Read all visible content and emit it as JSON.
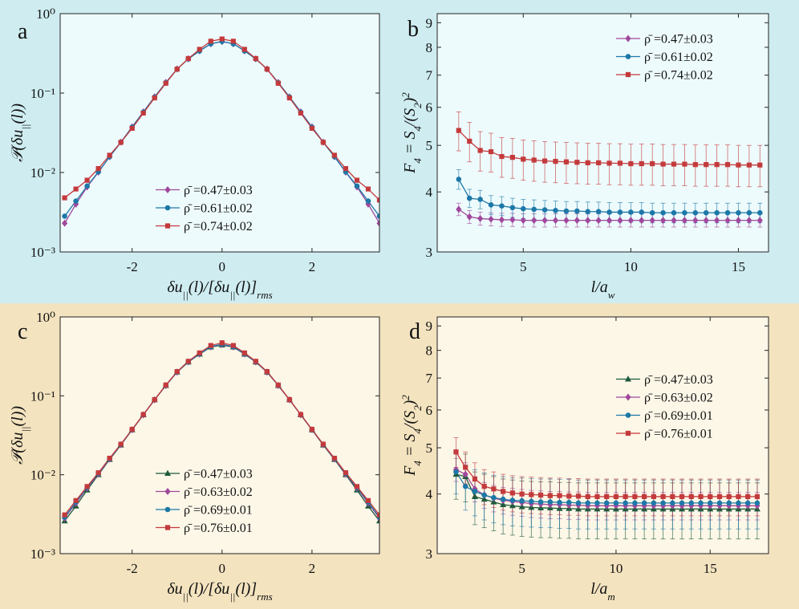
{
  "chart_data": [
    {
      "type": "line",
      "panel": "a",
      "log_y": true,
      "legend": "lower center",
      "xlabel": [
        {
          "text": "δu"
        },
        {
          "sub": "||"
        },
        {
          "text": "(l)/[δu"
        },
        {
          "sub": "||"
        },
        {
          "text": "(l)]"
        },
        {
          "sub": "rms"
        }
      ],
      "ylabel": [
        {
          "text": "𝒫(δu"
        },
        {
          "sub": "||"
        },
        {
          "text": "(l))"
        }
      ],
      "xlim": [
        -3.6,
        3.5
      ],
      "ylim": [
        0.001,
        1
      ],
      "xticks": [
        -2,
        0,
        2
      ],
      "yticks": [
        {
          "value": 0.001,
          "label": "10⁻³"
        },
        {
          "value": 0.01,
          "label": "10⁻²"
        },
        {
          "value": 0.1,
          "label": "10⁻¹"
        },
        {
          "value": 1,
          "label": "10⁰"
        }
      ],
      "x": [
        -3.5,
        -3.25,
        -3,
        -2.75,
        -2.5,
        -2.25,
        -2,
        -1.75,
        -1.5,
        -1.25,
        -1,
        -0.75,
        -0.5,
        -0.25,
        0,
        0.25,
        0.5,
        0.75,
        1,
        1.25,
        1.5,
        1.75,
        2,
        2.25,
        2.5,
        2.75,
        3,
        3.25,
        3.5
      ],
      "series": [
        {
          "name": "ρ̄ =0.47±0.03",
          "color": "#a0489c",
          "marker": "diamond",
          "values": [
            0.0023,
            0.004,
            0.0066,
            0.0101,
            0.0158,
            0.0241,
            0.0375,
            0.058,
            0.0895,
            0.136,
            0.201,
            0.27,
            0.34,
            0.418,
            0.445,
            0.418,
            0.34,
            0.27,
            0.201,
            0.136,
            0.0895,
            0.058,
            0.0375,
            0.0241,
            0.0158,
            0.0101,
            0.0066,
            0.004,
            0.0023
          ]
        },
        {
          "name": "ρ̄ =0.61±0.02",
          "color": "#1d78a8",
          "marker": "circle",
          "values": [
            0.00282,
            0.00437,
            0.00676,
            0.0102,
            0.0158,
            0.024,
            0.0372,
            0.0575,
            0.0891,
            0.135,
            0.2,
            0.269,
            0.339,
            0.417,
            0.447,
            0.417,
            0.339,
            0.269,
            0.2,
            0.135,
            0.0891,
            0.0575,
            0.0372,
            0.024,
            0.0158,
            0.0102,
            0.00676,
            0.00437,
            0.00282
          ]
        },
        {
          "name": "ρ̄ =0.74±0.02",
          "color": "#c43a3c",
          "marker": "square",
          "values": [
            0.0048,
            0.0062,
            0.008,
            0.0112,
            0.0165,
            0.024,
            0.036,
            0.056,
            0.087,
            0.133,
            0.2,
            0.272,
            0.355,
            0.45,
            0.48,
            0.45,
            0.355,
            0.272,
            0.2,
            0.133,
            0.087,
            0.056,
            0.036,
            0.024,
            0.0165,
            0.0112,
            0.008,
            0.0062,
            0.0045
          ]
        }
      ]
    },
    {
      "type": "line",
      "panel": "b",
      "log_y": true,
      "legend": "upper right",
      "xlabel": [
        {
          "text": "l/a"
        },
        {
          "sub": "w"
        }
      ],
      "ylabel": [
        {
          "text": "F"
        },
        {
          "sub": "4"
        },
        {
          "text": " = S"
        },
        {
          "sub": "4"
        },
        {
          "text": "/(S"
        },
        {
          "sub": "2"
        },
        {
          "text": ")"
        },
        {
          "sup": "2"
        }
      ],
      "xlim": [
        1,
        16.4
      ],
      "ylim": [
        3,
        9.4
      ],
      "xticks": [
        5,
        10,
        15
      ],
      "yticks": [
        3,
        4,
        5,
        6,
        7,
        8,
        9
      ],
      "x": [
        2,
        2.5,
        3,
        3.5,
        4,
        4.5,
        5,
        5.5,
        6,
        6.5,
        7,
        7.5,
        8,
        8.5,
        9,
        9.5,
        10,
        10.5,
        11,
        11.5,
        12,
        12.5,
        13,
        13.5,
        14,
        14.5,
        15,
        15.5,
        16
      ],
      "series": [
        {
          "name": "ρ̄ =0.47±0.03",
          "color": "#a0489c",
          "marker": "diamond",
          "values": [
            3.68,
            3.55,
            3.52,
            3.51,
            3.5,
            3.5,
            3.49,
            3.49,
            3.49,
            3.49,
            3.49,
            3.49,
            3.49,
            3.49,
            3.49,
            3.49,
            3.49,
            3.49,
            3.49,
            3.49,
            3.49,
            3.49,
            3.49,
            3.49,
            3.49,
            3.49,
            3.49,
            3.49,
            3.49
          ],
          "errors": [
            0.11,
            0.11,
            0.11,
            0.11,
            0.11,
            0.11,
            0.11,
            0.11,
            0.11,
            0.11,
            0.11,
            0.11,
            0.11,
            0.11,
            0.11,
            0.11,
            0.11,
            0.11,
            0.11,
            0.11,
            0.11,
            0.11,
            0.11,
            0.11,
            0.11,
            0.11,
            0.11,
            0.11,
            0.11
          ]
        },
        {
          "name": "ρ̄ =0.61±0.02",
          "color": "#1d78a8",
          "marker": "circle",
          "values": [
            4.25,
            3.88,
            3.86,
            3.76,
            3.74,
            3.71,
            3.69,
            3.68,
            3.67,
            3.66,
            3.65,
            3.65,
            3.64,
            3.64,
            3.63,
            3.63,
            3.63,
            3.63,
            3.62,
            3.62,
            3.62,
            3.62,
            3.62,
            3.62,
            3.62,
            3.62,
            3.62,
            3.62,
            3.62
          ],
          "errors": [
            0.2,
            0.17,
            0.17,
            0.17,
            0.17,
            0.17,
            0.17,
            0.17,
            0.17,
            0.17,
            0.17,
            0.17,
            0.17,
            0.17,
            0.17,
            0.17,
            0.17,
            0.17,
            0.17,
            0.17,
            0.17,
            0.17,
            0.17,
            0.17,
            0.17,
            0.17,
            0.17,
            0.17,
            0.17
          ]
        },
        {
          "name": "ρ̄ =0.74±0.02",
          "color": "#c43a3c",
          "marker": "square",
          "values": [
            5.37,
            5.1,
            4.88,
            4.85,
            4.74,
            4.72,
            4.68,
            4.66,
            4.64,
            4.63,
            4.62,
            4.61,
            4.6,
            4.6,
            4.59,
            4.59,
            4.58,
            4.58,
            4.58,
            4.57,
            4.57,
            4.57,
            4.56,
            4.56,
            4.56,
            4.56,
            4.55,
            4.55,
            4.55
          ],
          "errors": [
            0.5,
            0.48,
            0.46,
            0.45,
            0.45,
            0.45,
            0.45,
            0.45,
            0.45,
            0.45,
            0.45,
            0.45,
            0.45,
            0.45,
            0.45,
            0.45,
            0.45,
            0.45,
            0.45,
            0.45,
            0.45,
            0.45,
            0.45,
            0.45,
            0.45,
            0.45,
            0.45,
            0.45,
            0.45
          ]
        }
      ]
    },
    {
      "type": "line",
      "panel": "c",
      "log_y": true,
      "legend": "lower center",
      "xlabel": [
        {
          "text": "δu"
        },
        {
          "sub": "||"
        },
        {
          "text": "(l)/[δu"
        },
        {
          "sub": "||"
        },
        {
          "text": "(l)]"
        },
        {
          "sub": "rms"
        }
      ],
      "ylabel": [
        {
          "text": "𝒫(δu"
        },
        {
          "sub": "||"
        },
        {
          "text": "(l))"
        }
      ],
      "xlim": [
        -3.6,
        3.5
      ],
      "ylim": [
        0.001,
        1
      ],
      "xticks": [
        -2,
        0,
        2
      ],
      "yticks": [
        {
          "value": 0.001,
          "label": "10⁻³"
        },
        {
          "value": 0.01,
          "label": "10⁻²"
        },
        {
          "value": 0.1,
          "label": "10⁻¹"
        },
        {
          "value": 1,
          "label": "10⁰"
        }
      ],
      "x": [
        -3.5,
        -3.25,
        -3,
        -2.75,
        -2.5,
        -2.25,
        -2,
        -1.75,
        -1.5,
        -1.25,
        -1,
        -0.75,
        -0.5,
        -0.25,
        0,
        0.25,
        0.5,
        0.75,
        1,
        1.25,
        1.5,
        1.75,
        2,
        2.25,
        2.5,
        2.75,
        3,
        3.25,
        3.5
      ],
      "series": [
        {
          "name": "ρ̄ =0.47±0.03",
          "color": "#1e5a3c",
          "marker": "triangle",
          "values": [
            0.0026,
            0.004,
            0.0064,
            0.01,
            0.0156,
            0.0238,
            0.037,
            0.0575,
            0.089,
            0.135,
            0.2,
            0.268,
            0.338,
            0.415,
            0.44,
            0.415,
            0.338,
            0.268,
            0.2,
            0.135,
            0.089,
            0.0575,
            0.037,
            0.0238,
            0.0156,
            0.01,
            0.0064,
            0.004,
            0.0026
          ]
        },
        {
          "name": "ρ̄ =0.63±0.02",
          "color": "#a0489c",
          "marker": "diamond",
          "values": [
            0.00282,
            0.00437,
            0.00676,
            0.0102,
            0.0158,
            0.024,
            0.0372,
            0.0575,
            0.0891,
            0.135,
            0.2,
            0.269,
            0.339,
            0.417,
            0.447,
            0.417,
            0.339,
            0.269,
            0.2,
            0.135,
            0.0891,
            0.0575,
            0.0372,
            0.024,
            0.0158,
            0.0102,
            0.00676,
            0.00437,
            0.00282
          ]
        },
        {
          "name": "ρ̄ =0.69±0.01",
          "color": "#1d78a8",
          "marker": "circle",
          "values": [
            0.0029,
            0.0045,
            0.0069,
            0.0104,
            0.016,
            0.0242,
            0.0374,
            0.0578,
            0.0893,
            0.136,
            0.201,
            0.27,
            0.342,
            0.42,
            0.45,
            0.42,
            0.342,
            0.27,
            0.201,
            0.136,
            0.0893,
            0.0578,
            0.0374,
            0.0242,
            0.016,
            0.0104,
            0.0069,
            0.0045,
            0.0029
          ]
        },
        {
          "name": "ρ̄ =0.76±0.01",
          "color": "#c43a3c",
          "marker": "square",
          "values": [
            0.0031,
            0.0047,
            0.0071,
            0.0106,
            0.0162,
            0.0244,
            0.0376,
            0.058,
            0.0895,
            0.137,
            0.203,
            0.274,
            0.35,
            0.435,
            0.47,
            0.435,
            0.35,
            0.274,
            0.203,
            0.137,
            0.0895,
            0.058,
            0.0376,
            0.0244,
            0.0162,
            0.0106,
            0.0071,
            0.0047,
            0.0031
          ]
        }
      ]
    },
    {
      "type": "line",
      "panel": "d",
      "log_y": true,
      "legend": "center right",
      "xlabel": [
        {
          "text": "l/a"
        },
        {
          "sub": "m"
        }
      ],
      "ylabel": [
        {
          "text": "F"
        },
        {
          "sub": "4"
        },
        {
          "text": " = S"
        },
        {
          "sub": "4"
        },
        {
          "text": "/(S"
        },
        {
          "sub": "2"
        },
        {
          "text": ")"
        },
        {
          "sup": "2"
        }
      ],
      "xlim": [
        0.5,
        18.1
      ],
      "ylim": [
        3,
        9.4
      ],
      "xticks": [
        5,
        10,
        15
      ],
      "yticks": [
        3,
        4,
        5,
        6,
        7,
        8,
        9
      ],
      "x": [
        1.5,
        2,
        2.5,
        3,
        3.5,
        4,
        4.5,
        5,
        5.5,
        6,
        6.5,
        7,
        7.5,
        8,
        8.5,
        9,
        9.5,
        10,
        10.5,
        11,
        11.5,
        12,
        12.5,
        13,
        13.5,
        14,
        14.5,
        15,
        15.5,
        16,
        16.5,
        17,
        17.5
      ],
      "series": [
        {
          "name": "ρ̄ =0.47±0.03",
          "color": "#1e5a3c",
          "marker": "triangle",
          "values": [
            4.4,
            4.35,
            3.95,
            3.9,
            3.85,
            3.8,
            3.78,
            3.76,
            3.75,
            3.74,
            3.74,
            3.73,
            3.73,
            3.72,
            3.72,
            3.72,
            3.72,
            3.72,
            3.72,
            3.72,
            3.72,
            3.72,
            3.72,
            3.72,
            3.72,
            3.72,
            3.72,
            3.72,
            3.72,
            3.72,
            3.72,
            3.72,
            3.72
          ],
          "errors": [
            0.5,
            0.5,
            0.5,
            0.5,
            0.5,
            0.5,
            0.5,
            0.5,
            0.5,
            0.5,
            0.5,
            0.5,
            0.5,
            0.5,
            0.5,
            0.5,
            0.5,
            0.5,
            0.5,
            0.5,
            0.5,
            0.5,
            0.5,
            0.5,
            0.5,
            0.5,
            0.5,
            0.5,
            0.5,
            0.5,
            0.5,
            0.5,
            0.5
          ]
        },
        {
          "name": "ρ̄ =0.63±0.02",
          "color": "#a0489c",
          "marker": "diamond",
          "values": [
            4.5,
            4.4,
            4.1,
            3.98,
            3.92,
            3.88,
            3.86,
            3.84,
            3.82,
            3.81,
            3.8,
            3.8,
            3.79,
            3.79,
            3.78,
            3.78,
            3.78,
            3.78,
            3.78,
            3.78,
            3.78,
            3.78,
            3.78,
            3.78,
            3.78,
            3.78,
            3.78,
            3.78,
            3.78,
            3.78,
            3.78,
            3.78,
            3.78
          ],
          "errors": [
            0.25,
            0.25,
            0.25,
            0.25,
            0.25,
            0.25,
            0.25,
            0.25,
            0.25,
            0.25,
            0.25,
            0.25,
            0.25,
            0.25,
            0.25,
            0.25,
            0.25,
            0.25,
            0.25,
            0.25,
            0.25,
            0.25,
            0.25,
            0.25,
            0.25,
            0.25,
            0.25,
            0.25,
            0.25,
            0.25,
            0.25,
            0.25,
            0.25
          ]
        },
        {
          "name": "ρ̄ =0.69±0.01",
          "color": "#1d78a8",
          "marker": "circle",
          "values": [
            4.45,
            4.15,
            4.05,
            3.98,
            3.93,
            3.9,
            3.88,
            3.87,
            3.86,
            3.85,
            3.85,
            3.84,
            3.84,
            3.83,
            3.83,
            3.83,
            3.83,
            3.83,
            3.83,
            3.83,
            3.83,
            3.83,
            3.83,
            3.83,
            3.83,
            3.83,
            3.83,
            3.83,
            3.83,
            3.83,
            3.83,
            3.83,
            3.83
          ],
          "errors": [
            0.45,
            0.45,
            0.45,
            0.45,
            0.45,
            0.45,
            0.45,
            0.45,
            0.45,
            0.45,
            0.45,
            0.45,
            0.45,
            0.45,
            0.45,
            0.45,
            0.45,
            0.45,
            0.45,
            0.45,
            0.45,
            0.45,
            0.45,
            0.45,
            0.45,
            0.45,
            0.45,
            0.45,
            0.45,
            0.45,
            0.45,
            0.45,
            0.45
          ]
        },
        {
          "name": "ρ̄ =0.76±0.01",
          "color": "#c43a3c",
          "marker": "square",
          "values": [
            4.9,
            4.55,
            4.3,
            4.15,
            4.1,
            4.05,
            4.02,
            4.0,
            3.99,
            3.98,
            3.97,
            3.97,
            3.96,
            3.96,
            3.95,
            3.95,
            3.95,
            3.95,
            3.95,
            3.95,
            3.95,
            3.95,
            3.95,
            3.95,
            3.95,
            3.95,
            3.95,
            3.95,
            3.95,
            3.95,
            3.95,
            3.95,
            3.95
          ],
          "errors": [
            0.35,
            0.35,
            0.35,
            0.35,
            0.35,
            0.35,
            0.35,
            0.35,
            0.35,
            0.35,
            0.35,
            0.35,
            0.35,
            0.35,
            0.35,
            0.35,
            0.35,
            0.35,
            0.35,
            0.35,
            0.35,
            0.35,
            0.35,
            0.35,
            0.35,
            0.35,
            0.35,
            0.35,
            0.35,
            0.35,
            0.35,
            0.35,
            0.35
          ]
        }
      ]
    }
  ]
}
